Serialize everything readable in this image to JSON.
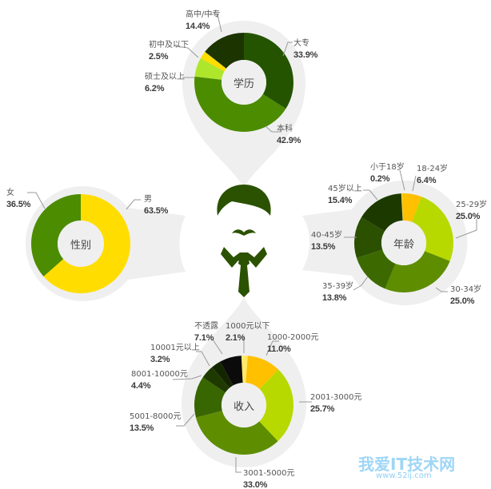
{
  "chart_data": [
    {
      "type": "pie",
      "title": "学历",
      "categories": [
        "大专",
        "本科",
        "硕士及以上",
        "初中及以下",
        "高中/中专"
      ],
      "values": [
        33.9,
        42.9,
        6.2,
        2.5,
        14.4
      ],
      "labels": [
        "33.9%",
        "42.9%",
        "6.2%",
        "2.5%",
        "14.4%"
      ],
      "colors": [
        "#245400",
        "#4c8c00",
        "#aee62c",
        "#ffdd00",
        "#1b3400"
      ]
    },
    {
      "type": "pie",
      "title": "性别",
      "categories": [
        "男",
        "女"
      ],
      "values": [
        63.5,
        36.5
      ],
      "labels": [
        "63.5%",
        "36.5%"
      ],
      "colors": [
        "#ffdd00",
        "#4c8c00"
      ]
    },
    {
      "type": "pie",
      "title": "年龄",
      "categories": [
        "小于18岁",
        "18-24岁",
        "25-29岁",
        "30-34岁",
        "35-39岁",
        "40-45岁",
        "45岁以上"
      ],
      "values": [
        0.2,
        6.4,
        25.0,
        25.0,
        13.8,
        13.5,
        15.4
      ],
      "labels": [
        "0.2%",
        "6.4%",
        "25.0%",
        "25.0%",
        "13.8%",
        "13.5%",
        "15.4%"
      ],
      "colors": [
        "#fff07a",
        "#ffc000",
        "#b8d900",
        "#5e8d00",
        "#3c6a00",
        "#2a5000",
        "#1c3a00"
      ]
    },
    {
      "type": "pie",
      "title": "收入",
      "categories": [
        "1000元以下",
        "1000-2000元",
        "2001-3000元",
        "3001-5000元",
        "5001-8000元",
        "8001-10000元",
        "10001元以上",
        "不透露"
      ],
      "values": [
        2.1,
        11.0,
        25.7,
        33.0,
        13.5,
        4.4,
        3.2,
        7.1
      ],
      "labels": [
        "2.1%",
        "11.0%",
        "25.7%",
        "33.0%",
        "13.5%",
        "4.4%",
        "3.2%",
        "7.1%"
      ],
      "colors": [
        "#ffea6a",
        "#ffc000",
        "#b8d900",
        "#5e8d00",
        "#386600",
        "#1f3a00",
        "#142600",
        "#0b0b0b"
      ]
    }
  ],
  "figure_color": "#2a5200",
  "watermark": {
    "text": "我爱IT技术网",
    "url": "www.52ij.com"
  }
}
